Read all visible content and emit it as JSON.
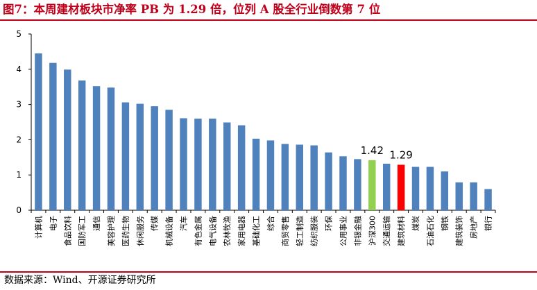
{
  "title": "图7：本周建材板块市净率 PB 为 1.29 倍，位列 A 股全行业倒数第 7 位",
  "footer": "数据来源：Wind、开源证券研究所",
  "chart_data": {
    "type": "bar",
    "title": "",
    "xlabel": "",
    "ylabel": "",
    "ylim": [
      0,
      5
    ],
    "yticks": [
      "0",
      "1",
      "2",
      "3",
      "4",
      "5"
    ],
    "grid": false,
    "categories": [
      "计算机",
      "电子",
      "食品饮料",
      "国防军工",
      "通信",
      "美容护理",
      "医药生物",
      "休闲服务",
      "传媒",
      "机械设备",
      "汽车",
      "有色金属",
      "电气设备",
      "农林牧渔",
      "家用电器",
      "基础化工",
      "综合",
      "商贸零售",
      "轻工制造",
      "纺织服装",
      "环保",
      "公用事业",
      "非银金融",
      "沪深300",
      "交通运输",
      "建筑材料",
      "煤炭",
      "石油石化",
      "钢铁",
      "建筑装饰",
      "房地产",
      "银行"
    ],
    "series": [
      {
        "values": [
          4.45,
          4.18,
          3.99,
          3.68,
          3.52,
          3.48,
          3.06,
          3.02,
          2.95,
          2.85,
          2.61,
          2.6,
          2.6,
          2.49,
          2.41,
          2.03,
          1.98,
          1.88,
          1.86,
          1.84,
          1.64,
          1.53,
          1.45,
          1.42,
          1.32,
          1.29,
          1.23,
          1.23,
          1.1,
          0.79,
          0.79,
          0.6
        ],
        "colors": {
          "default": "#4f81bd",
          "沪深300": "#92d050",
          "建筑材料": "#ff0000"
        }
      }
    ],
    "annotations": [
      {
        "category": "沪深300",
        "text": "1.42"
      },
      {
        "category": "建筑材料",
        "text": "1.29"
      }
    ]
  }
}
